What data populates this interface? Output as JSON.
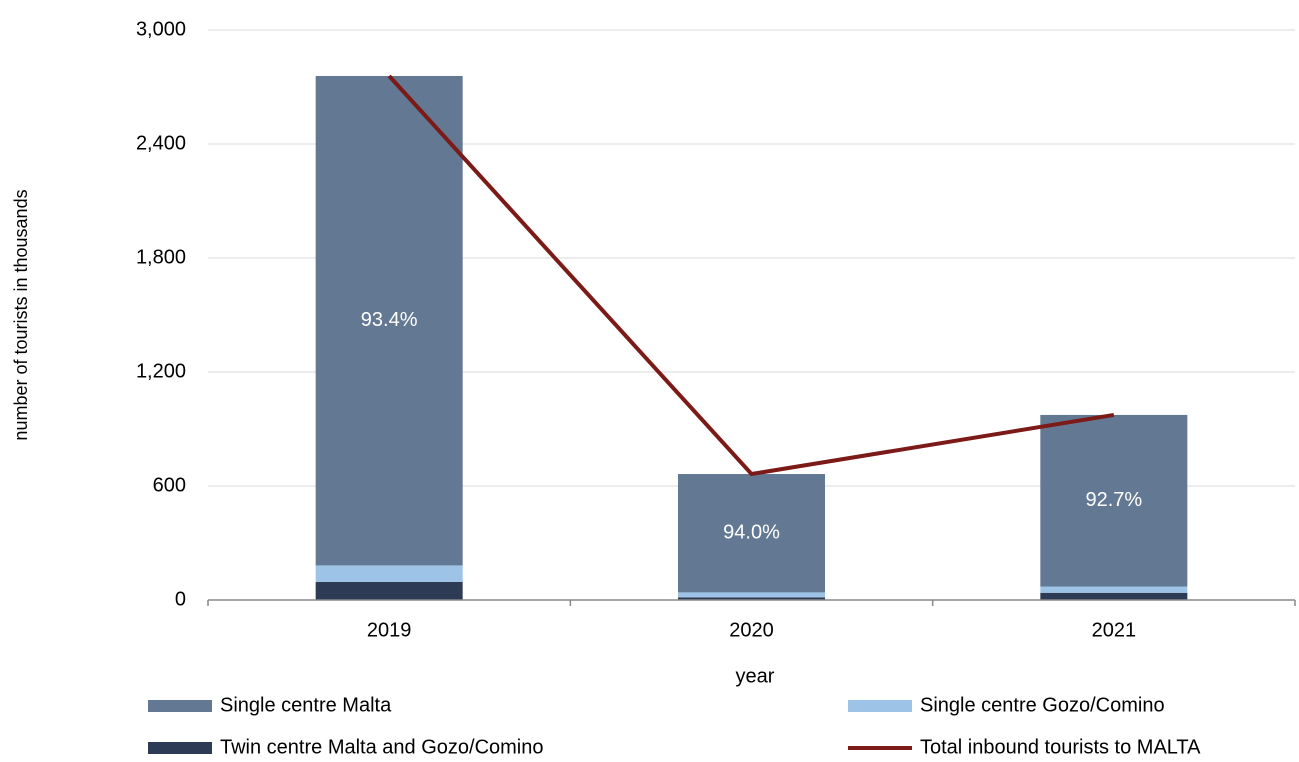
{
  "chart_data": {
    "type": "stacked-bar-line",
    "y_label": "number of tourists in thousands",
    "x_label": "year",
    "categories": [
      "2019",
      "2020",
      "2021"
    ],
    "series": [
      {
        "name": "Twin centre Malta and Gozo/Comino",
        "color": "#2e3b55",
        "values": [
          95,
          14,
          38
        ]
      },
      {
        "name": "Single centre Gozo/Comino",
        "color": "#9dc3e6",
        "values": [
          87,
          26,
          33
        ]
      },
      {
        "name": "Single centre Malta",
        "color": "#637893",
        "values": [
          2576,
          623,
          903
        ]
      },
      {
        "name": "Total inbound tourists to MALTA",
        "color": "#7b1a17",
        "type": "line",
        "values": [
          2758,
          663,
          974
        ]
      }
    ],
    "annotations": [
      "93.4%",
      "94.0%",
      "92.7%"
    ],
    "ylim": [
      0,
      3000
    ],
    "yticks": [
      0,
      600,
      {
        "value": 1200,
        "label": "1,200"
      },
      {
        "value": 1800,
        "label": "1,800"
      },
      {
        "value": 2400,
        "label": "2,400"
      },
      {
        "value": 3000,
        "label": "3,000"
      }
    ],
    "grid": true
  }
}
